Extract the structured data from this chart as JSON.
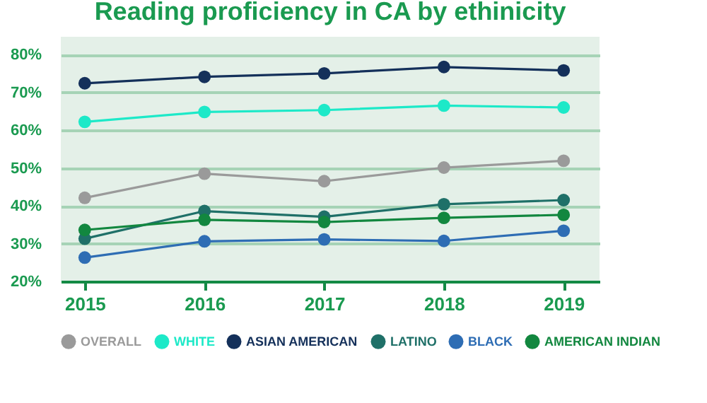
{
  "chart_data": {
    "type": "line",
    "title": "Reading proficiency in CA by ethinicity",
    "x": [
      2015,
      2016,
      2017,
      2018,
      2019
    ],
    "xlim": [
      2014.8,
      2019.3
    ],
    "xticks": [
      2015,
      2016,
      2017,
      2018,
      2019
    ],
    "ylim": [
      20,
      84.7
    ],
    "yticks": [
      {
        "value": 20,
        "label": "20%"
      },
      {
        "value": 30,
        "label": "30%"
      },
      {
        "value": 40,
        "label": "40%"
      },
      {
        "value": 50,
        "label": "50%"
      },
      {
        "value": 60,
        "label": "60%"
      },
      {
        "value": 70,
        "label": "70%"
      },
      {
        "value": 80,
        "label": "80%"
      }
    ],
    "grid": "y",
    "legend": "bottom",
    "marker": "circle",
    "line_style": "solid",
    "series": [
      {
        "name": "OVERALL",
        "color": "#9a9a9a",
        "values": [
          42.1,
          48.5,
          46.5,
          50.1,
          51.9
        ]
      },
      {
        "name": "WHITE",
        "color": "#1de9c8",
        "values": [
          62.2,
          64.8,
          65.3,
          66.5,
          66.0
        ]
      },
      {
        "name": "ASIAN AMERICAN",
        "color": "#14305a",
        "values": [
          72.4,
          74.1,
          75.0,
          76.7,
          75.8
        ]
      },
      {
        "name": "LATINO",
        "color": "#1f7068",
        "values": [
          31.3,
          38.6,
          37.1,
          40.4,
          41.5
        ]
      },
      {
        "name": "BLACK",
        "color": "#2e6db4",
        "values": [
          26.3,
          30.6,
          31.1,
          30.7,
          33.4
        ]
      },
      {
        "name": "AMERICAN INDIAN",
        "color": "#12873f",
        "values": [
          33.6,
          36.3,
          35.7,
          36.8,
          37.6
        ]
      }
    ]
  }
}
